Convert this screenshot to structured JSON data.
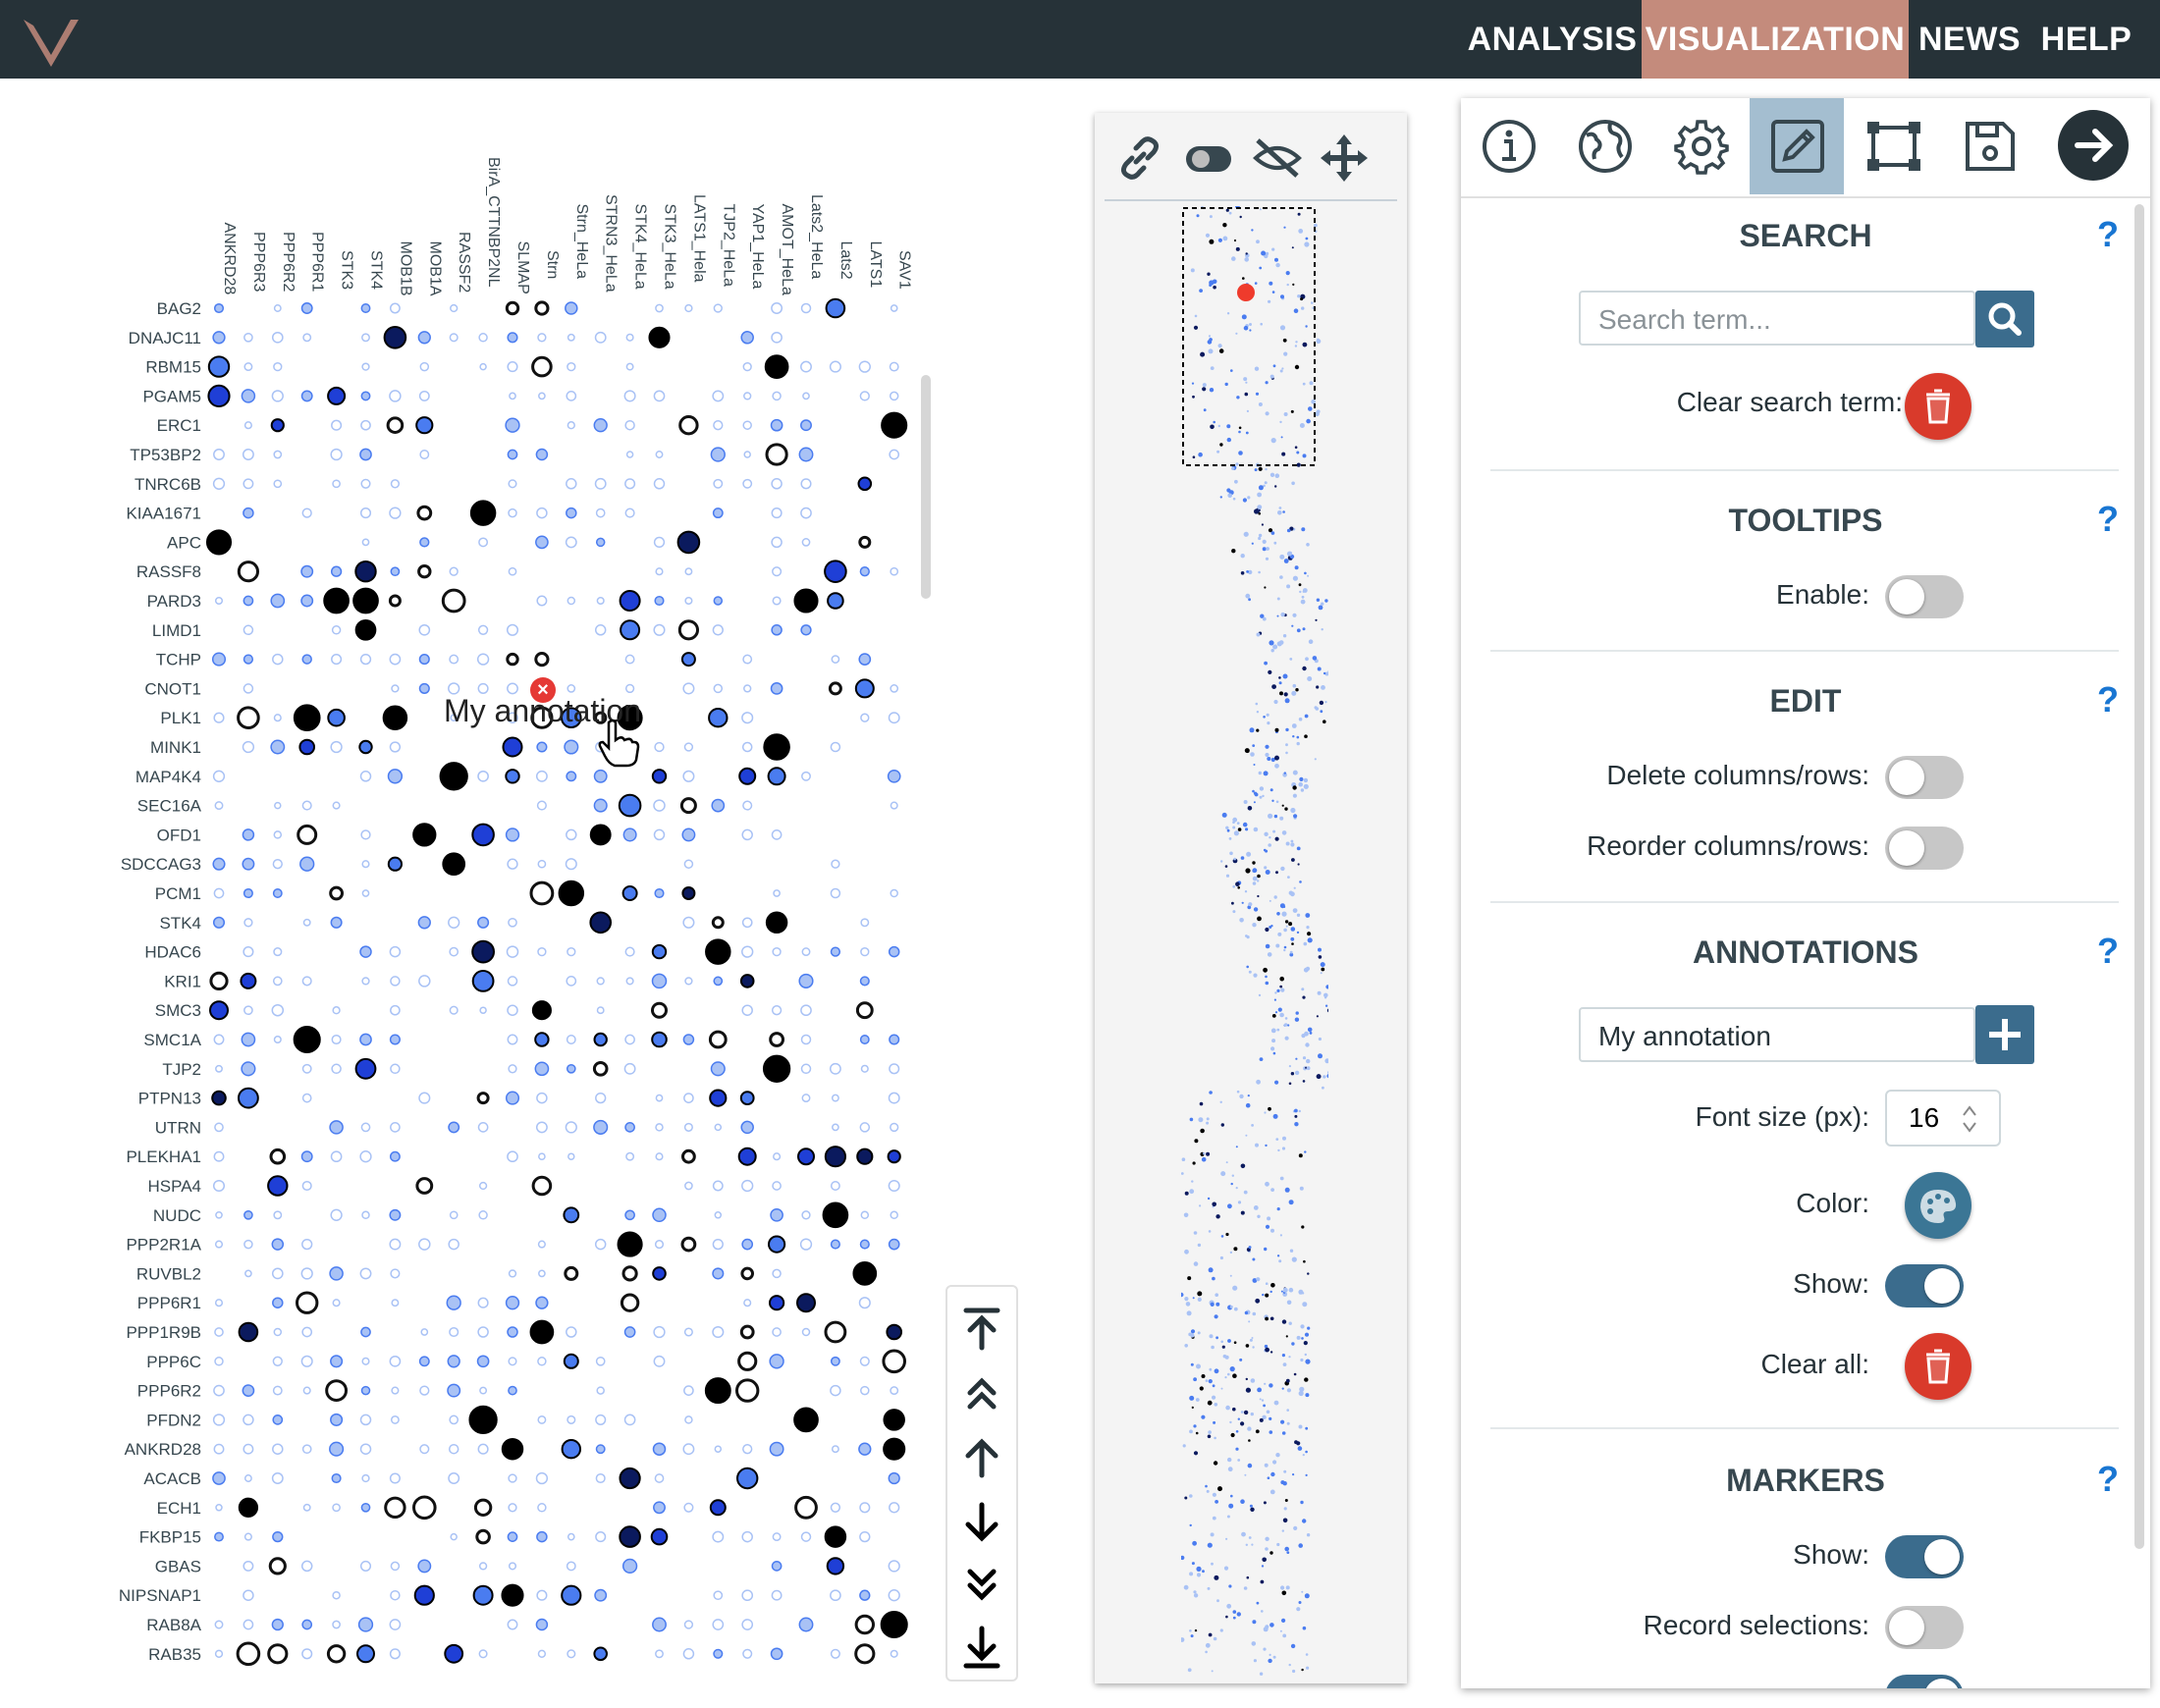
{
  "topbar": {
    "logo": "v-logo-icon",
    "nav": [
      {
        "label": "ANALYSIS",
        "active": false
      },
      {
        "label": "VISUALIZATION",
        "active": true
      },
      {
        "label": "NEWS",
        "active": false
      },
      {
        "label": "HELP",
        "active": false
      }
    ]
  },
  "dotplot": {
    "columns": [
      "ANKRD28",
      "PPP6R3",
      "PPP6R2",
      "PPP6R1",
      "STK3",
      "STK4",
      "MOB1B",
      "MOB1A",
      "RASSF2",
      "BirA_CTTNBP2NL",
      "SLMAP",
      "Strn",
      "Strn_HeLa",
      "STRN3_HeLa",
      "STK4_HeLa",
      "STK3_HeLa",
      "LATS1_Hela",
      "TJP2_HeLa",
      "YAP1_HeLa",
      "AMOT_HeLa",
      "Lats2_HeLa",
      "Lats2",
      "LATS1",
      "SAV1"
    ],
    "rows": [
      "BAG2",
      "DNAJC11",
      "RBM15",
      "PGAM5",
      "ERC1",
      "TP53BP2",
      "TNRC6B",
      "KIAA1671",
      "APC",
      "RASSF8",
      "PARD3",
      "LIMD1",
      "TCHP",
      "CNOT1",
      "PLK1",
      "MINK1",
      "MAP4K4",
      "SEC16A",
      "OFD1",
      "SDCCAG3",
      "PCM1",
      "STK4",
      "HDAC6",
      "KRI1",
      "SMC3",
      "SMC1A",
      "TJP2",
      "PTPN13",
      "UTRN",
      "PLEKHA1",
      "HSPA4",
      "NUDC",
      "PPP2R1A",
      "RUVBL2",
      "PPP6R1",
      "PPP1R9B",
      "PPP6C",
      "PPP6R2",
      "PFDN2",
      "ANKRD28",
      "ACACB",
      "ECH1",
      "FKBP15",
      "GBAS",
      "NIPSNAP1",
      "RAB8A",
      "RAB35"
    ],
    "colors": {
      "light": "#a9c2f5",
      "mid": "#4a7cf0",
      "strong": "#1f3fd6",
      "dark": "#0b1a5e",
      "black": "#000000"
    },
    "annotation": {
      "text": "My annotation"
    }
  },
  "navigation": [
    "jump-to-top-icon",
    "page-up-icon",
    "step-up-icon",
    "step-down-icon",
    "page-down-icon",
    "jump-to-bottom-icon"
  ],
  "minimap": {
    "tools": [
      "link-icon",
      "toggle-icon",
      "hide-icon",
      "move-icon"
    ]
  },
  "panel": {
    "tabs": [
      "info-icon",
      "globe-icon",
      "settings-icon",
      "edit-icon",
      "selection-icon",
      "save-icon",
      "close-panel-icon"
    ],
    "active_tab": "edit-icon",
    "search": {
      "title": "SEARCH",
      "placeholder": "Search term...",
      "clear_label": "Clear search term:"
    },
    "tooltips": {
      "title": "TOOLTIPS",
      "enable_label": "Enable:",
      "enabled": false
    },
    "edit": {
      "title": "EDIT",
      "delete_label": "Delete columns/rows:",
      "reorder_label": "Reorder columns/rows:",
      "delete_on": false,
      "reorder_on": false
    },
    "annotations": {
      "title": "ANNOTATIONS",
      "input_value": "My annotation",
      "font_label": "Font size (px):",
      "font_size": "16",
      "color_label": "Color:",
      "show_label": "Show:",
      "show_on": true,
      "clear_label": "Clear all:"
    },
    "markers": {
      "title": "MARKERS",
      "show_label": "Show:",
      "show_on": true,
      "record_label": "Record selections:",
      "record_on": false
    },
    "help": "?"
  }
}
